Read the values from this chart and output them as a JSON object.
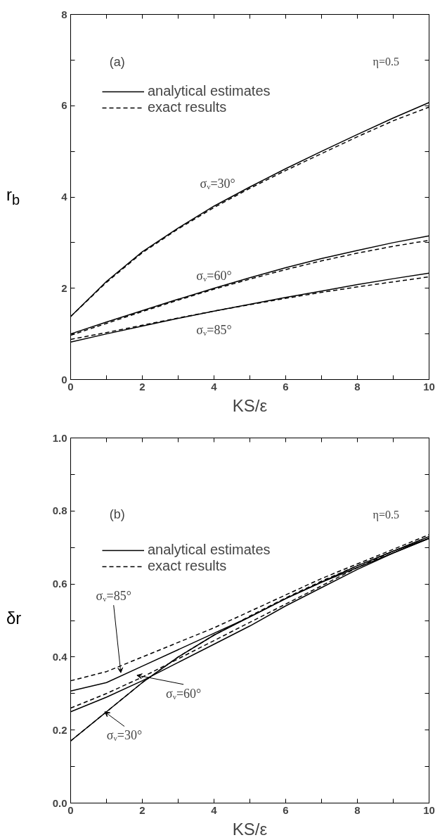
{
  "chart_data": [
    {
      "type": "line",
      "xlabel": "KS/ε",
      "ylabel": "r$_{b}$",
      "legend": "top left",
      "grid": false,
      "x": [
        0,
        1,
        2,
        3,
        4,
        5,
        6,
        7,
        8,
        9,
        10
      ],
      "xlim": [
        0,
        10
      ],
      "ylim": [
        0,
        8
      ],
      "xticks": [
        0,
        {
          "value": 1,
          "label": null
        },
        2,
        {
          "value": 3,
          "label": null
        },
        4,
        {
          "value": 5,
          "label": null
        },
        6,
        {
          "value": 7,
          "label": null
        },
        8,
        {
          "value": 9,
          "label": null
        },
        10
      ],
      "yticks": [
        0,
        {
          "value": 1,
          "label": null
        },
        2,
        {
          "value": 3,
          "label": null
        },
        4,
        {
          "value": 5,
          "label": null
        },
        6,
        {
          "value": 7,
          "label": null
        },
        8
      ],
      "series": [
        {
          "name": "analytical estimates",
          "color": "#000000",
          "line_style": "solid",
          "values": [
            1.38,
            2.15,
            2.8,
            3.32,
            3.8,
            4.22,
            4.62,
            5.0,
            5.37,
            5.73,
            6.07
          ]
        },
        {
          "name": "exact results",
          "color": "#000000",
          "line_style": "dashed",
          "values": [
            1.38,
            2.13,
            2.78,
            3.3,
            3.77,
            4.19,
            4.58,
            4.95,
            5.32,
            5.67,
            5.97
          ]
        },
        {
          "color": "#000000",
          "line_style": "solid",
          "values": [
            1.0,
            1.26,
            1.51,
            1.76,
            2.0,
            2.23,
            2.45,
            2.65,
            2.83,
            3.0,
            3.15
          ]
        },
        {
          "color": "#000000",
          "line_style": "dashed",
          "values": [
            0.97,
            1.23,
            1.49,
            1.74,
            1.98,
            2.2,
            2.41,
            2.6,
            2.77,
            2.92,
            3.05
          ]
        },
        {
          "color": "#000000",
          "line_style": "solid",
          "values": [
            0.82,
            1.0,
            1.17,
            1.34,
            1.5,
            1.65,
            1.8,
            1.94,
            2.08,
            2.21,
            2.33
          ]
        },
        {
          "color": "#000000",
          "line_style": "dashed",
          "values": [
            0.88,
            1.03,
            1.19,
            1.35,
            1.5,
            1.64,
            1.78,
            1.91,
            2.03,
            2.14,
            2.25
          ]
        }
      ],
      "annotations": [
        "(a)",
        "η=0.5",
        {
          "text": "σᵥ=30°",
          "x": 4.1,
          "y": 3.85
        },
        {
          "text": "σᵥ=60°",
          "x": 4.0,
          "y": 2.0
        },
        {
          "text": "σᵥ=85°",
          "x": 4.0,
          "y": 1.5
        }
      ]
    },
    {
      "type": "line",
      "xlabel": "KS/ε",
      "ylabel": "δr",
      "legend": "top left",
      "grid": false,
      "x": [
        0,
        1,
        2,
        3,
        4,
        5,
        6,
        7,
        8,
        9,
        10
      ],
      "xlim": [
        0,
        10
      ],
      "ylim": [
        0,
        1
      ],
      "xticks": [
        0,
        {
          "value": 1,
          "label": null
        },
        2,
        {
          "value": 3,
          "label": null
        },
        4,
        {
          "value": 5,
          "label": null
        },
        6,
        {
          "value": 7,
          "label": null
        },
        8,
        {
          "value": 9,
          "label": null
        },
        10
      ],
      "yticks": [
        {
          "value": 0,
          "label": "0.0"
        },
        {
          "value": 0.1,
          "label": null
        },
        0.2,
        {
          "value": 0.3,
          "label": null
        },
        0.4,
        {
          "value": 0.5,
          "label": null
        },
        0.6,
        {
          "value": 0.7,
          "label": null
        },
        0.8,
        {
          "value": 0.9,
          "label": null
        },
        {
          "value": 1,
          "label": "1.0"
        }
      ],
      "series": [
        {
          "name": "analytical estimates",
          "color": "#000000",
          "line_style": "solid",
          "values": [
            0.17,
            0.25,
            0.33,
            0.4,
            0.46,
            0.51,
            0.56,
            0.605,
            0.645,
            0.685,
            0.725
          ]
        },
        {
          "name": "exact results",
          "color": "#000000",
          "line_style": "dashed",
          "values": [
            0.17,
            0.25,
            0.33,
            0.4,
            0.46,
            0.512,
            0.562,
            0.608,
            0.65,
            0.69,
            0.73
          ]
        },
        {
          "color": "#000000",
          "line_style": "solid",
          "values": [
            0.25,
            0.29,
            0.335,
            0.385,
            0.435,
            0.485,
            0.54,
            0.59,
            0.64,
            0.685,
            0.725
          ]
        },
        {
          "color": "#000000",
          "line_style": "dashed",
          "values": [
            0.26,
            0.3,
            0.345,
            0.395,
            0.445,
            0.495,
            0.545,
            0.595,
            0.645,
            0.69,
            0.73
          ]
        },
        {
          "color": "#000000",
          "line_style": "solid",
          "values": [
            0.307,
            0.33,
            0.375,
            0.42,
            0.465,
            0.51,
            0.56,
            0.605,
            0.65,
            0.69,
            0.725
          ]
        },
        {
          "color": "#000000",
          "line_style": "dashed",
          "values": [
            0.335,
            0.36,
            0.4,
            0.44,
            0.48,
            0.525,
            0.57,
            0.615,
            0.655,
            0.695,
            0.735
          ]
        }
      ],
      "annotations": [
        "(b)",
        "η=0.5",
        {
          "text": "σᵥ=85°",
          "x": 1.4,
          "y": 0.357
        },
        {
          "text": "σᵥ=60°",
          "x": 1.85,
          "y": 0.35
        },
        {
          "text": "σᵥ=30°",
          "x": 0.95,
          "y": 0.25
        }
      ]
    }
  ]
}
